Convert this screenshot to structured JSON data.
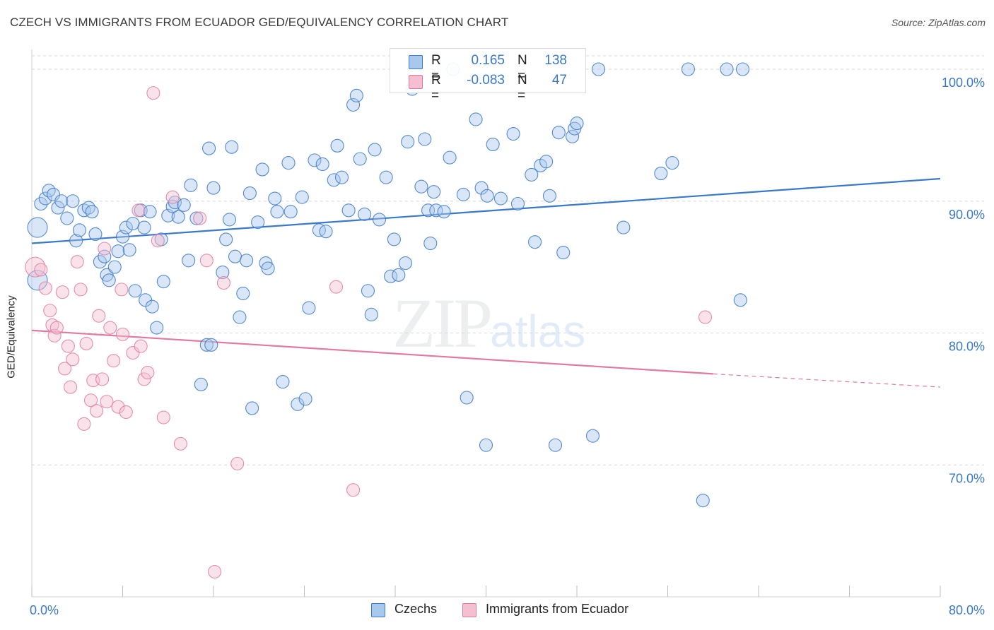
{
  "title": "CZECH VS IMMIGRANTS FROM ECUADOR GED/EQUIVALENCY CORRELATION CHART",
  "source": "Source: ZipAtlas.com",
  "watermark": {
    "zip": "ZIP",
    "atlas": "atlas"
  },
  "colors": {
    "blue": "#3a78c9",
    "pink": "#e07aa0",
    "blue_fill": "#a9c8ee",
    "pink_fill": "#f4bfd0",
    "grid": "#d8d8d8"
  },
  "legend": {
    "rows": [
      {
        "r_label": "R =",
        "r_value": "0.165",
        "n_label": "N =",
        "n_value": "138"
      },
      {
        "r_label": "R =",
        "r_value": "-0.083",
        "n_label": "N =",
        "n_value": "47"
      }
    ]
  },
  "bottom_legend": {
    "czechs": "Czechs",
    "ecuador": "Immigrants from Ecuador"
  },
  "chart_data": {
    "type": "scatter",
    "xlabel": "",
    "ylabel": "GED/Equivalency",
    "xlim": [
      0,
      80
    ],
    "ylim": [
      60,
      101.5
    ],
    "x_tick_labels": [
      {
        "value": 0,
        "label": "0.0%"
      },
      {
        "value": 80,
        "label": "80.0%"
      }
    ],
    "y_tick_labels": [
      {
        "value": 100,
        "label": "100.0%"
      },
      {
        "value": 90,
        "label": "90.0%"
      },
      {
        "value": 80,
        "label": "80.0%"
      },
      {
        "value": 70,
        "label": "70.0%"
      }
    ],
    "grid": "horizontal dashed",
    "legend_position": "top-center",
    "series": [
      {
        "name": "Czechs",
        "color": "#3a78c9",
        "trend": {
          "x0": 0,
          "y0": 86.8,
          "x1": 80,
          "y1": 91.7
        },
        "points": [
          [
            0.5,
            84.0
          ],
          [
            0.5,
            88.0
          ],
          [
            0.8,
            89.8
          ],
          [
            1.2,
            90.2
          ],
          [
            1.5,
            90.8
          ],
          [
            1.9,
            90.5
          ],
          [
            2.3,
            89.5
          ],
          [
            2.6,
            90.0
          ],
          [
            3.1,
            88.7
          ],
          [
            3.6,
            90.0
          ],
          [
            3.9,
            87.0
          ],
          [
            4.2,
            87.8
          ],
          [
            4.6,
            89.3
          ],
          [
            5.0,
            89.5
          ],
          [
            5.3,
            89.2
          ],
          [
            5.6,
            87.5
          ],
          [
            6.0,
            85.4
          ],
          [
            6.4,
            85.8
          ],
          [
            6.6,
            84.4
          ],
          [
            6.8,
            84.0
          ],
          [
            7.3,
            85.0
          ],
          [
            7.6,
            86.2
          ],
          [
            8.0,
            87.3
          ],
          [
            8.3,
            88.0
          ],
          [
            8.6,
            86.3
          ],
          [
            8.9,
            88.3
          ],
          [
            9.1,
            83.2
          ],
          [
            9.6,
            89.3
          ],
          [
            9.9,
            88.0
          ],
          [
            10.0,
            82.5
          ],
          [
            10.4,
            89.2
          ],
          [
            10.6,
            82.0
          ],
          [
            11.0,
            80.4
          ],
          [
            11.4,
            87.1
          ],
          [
            11.6,
            83.9
          ],
          [
            12.0,
            88.9
          ],
          [
            12.4,
            89.6
          ],
          [
            12.6,
            89.9
          ],
          [
            12.9,
            88.8
          ],
          [
            13.4,
            89.7
          ],
          [
            13.8,
            85.5
          ],
          [
            14.0,
            91.2
          ],
          [
            14.5,
            88.7
          ],
          [
            14.9,
            76.1
          ],
          [
            15.4,
            79.1
          ],
          [
            15.6,
            94.0
          ],
          [
            15.8,
            79.1
          ],
          [
            16.0,
            91.0
          ],
          [
            16.8,
            84.6
          ],
          [
            17.1,
            87.1
          ],
          [
            17.4,
            88.6
          ],
          [
            17.6,
            94.1
          ],
          [
            17.9,
            85.8
          ],
          [
            18.3,
            81.2
          ],
          [
            18.6,
            83.0
          ],
          [
            18.9,
            85.5
          ],
          [
            19.2,
            90.6
          ],
          [
            19.4,
            74.3
          ],
          [
            19.9,
            88.4
          ],
          [
            20.3,
            92.4
          ],
          [
            20.6,
            85.3
          ],
          [
            20.8,
            84.9
          ],
          [
            21.4,
            90.2
          ],
          [
            21.6,
            89.2
          ],
          [
            22.1,
            76.3
          ],
          [
            22.6,
            92.9
          ],
          [
            22.8,
            89.2
          ],
          [
            23.4,
            74.6
          ],
          [
            23.8,
            90.3
          ],
          [
            24.1,
            75.0
          ],
          [
            24.4,
            81.9
          ],
          [
            24.9,
            93.1
          ],
          [
            25.3,
            87.8
          ],
          [
            25.6,
            92.8
          ],
          [
            25.9,
            87.7
          ],
          [
            26.6,
            91.6
          ],
          [
            26.9,
            94.2
          ],
          [
            27.3,
            91.8
          ],
          [
            27.9,
            89.3
          ],
          [
            28.3,
            97.3
          ],
          [
            28.6,
            98.0
          ],
          [
            28.9,
            93.2
          ],
          [
            29.3,
            89.0
          ],
          [
            29.6,
            83.2
          ],
          [
            29.9,
            81.4
          ],
          [
            30.2,
            93.9
          ],
          [
            30.6,
            88.6
          ],
          [
            31.2,
            91.8
          ],
          [
            31.6,
            84.3
          ],
          [
            31.9,
            87.1
          ],
          [
            32.3,
            84.4
          ],
          [
            32.9,
            85.3
          ],
          [
            33.1,
            94.5
          ],
          [
            33.5,
            98.5
          ],
          [
            34.3,
            91.1
          ],
          [
            34.6,
            94.7
          ],
          [
            34.9,
            89.3
          ],
          [
            35.1,
            86.8
          ],
          [
            35.4,
            90.7
          ],
          [
            35.6,
            89.3
          ],
          [
            36.3,
            89.2
          ],
          [
            36.8,
            93.3
          ],
          [
            37.1,
            100.0
          ],
          [
            38.0,
            90.5
          ],
          [
            38.3,
            75.1
          ],
          [
            39.1,
            96.2
          ],
          [
            39.6,
            91.0
          ],
          [
            40.0,
            71.5
          ],
          [
            40.1,
            90.4
          ],
          [
            40.6,
            94.3
          ],
          [
            41.3,
            90.2
          ],
          [
            42.4,
            95.1
          ],
          [
            42.8,
            89.8
          ],
          [
            44.0,
            92.0
          ],
          [
            44.3,
            86.9
          ],
          [
            44.8,
            92.7
          ],
          [
            45.3,
            93.0
          ],
          [
            45.6,
            90.4
          ],
          [
            46.1,
            71.5
          ],
          [
            46.4,
            95.2
          ],
          [
            46.8,
            86.1
          ],
          [
            47.6,
            94.9
          ],
          [
            47.8,
            95.5
          ],
          [
            48.0,
            95.9
          ],
          [
            49.4,
            72.2
          ],
          [
            49.9,
            100.0
          ],
          [
            52.1,
            88.0
          ],
          [
            55.4,
            92.1
          ],
          [
            56.4,
            92.9
          ],
          [
            57.8,
            100.0
          ],
          [
            59.1,
            67.3
          ],
          [
            61.2,
            100.0
          ],
          [
            62.4,
            82.5
          ],
          [
            62.6,
            100.0
          ]
        ]
      },
      {
        "name": "Immigrants from Ecuador",
        "color": "#e07aa0",
        "trend": {
          "x0": 0,
          "y0": 80.2,
          "x1": 60,
          "y1": 76.9,
          "dash_to": {
            "x": 80,
            "y": 75.9
          }
        },
        "points": [
          [
            0.3,
            85.0
          ],
          [
            0.8,
            84.8
          ],
          [
            1.2,
            83.4
          ],
          [
            1.6,
            81.7
          ],
          [
            1.8,
            80.6
          ],
          [
            2.0,
            79.8
          ],
          [
            2.2,
            80.4
          ],
          [
            2.7,
            83.1
          ],
          [
            2.9,
            77.3
          ],
          [
            3.2,
            79.0
          ],
          [
            3.4,
            75.9
          ],
          [
            3.6,
            78.0
          ],
          [
            4.0,
            85.4
          ],
          [
            4.3,
            83.3
          ],
          [
            4.6,
            73.1
          ],
          [
            4.8,
            79.2
          ],
          [
            5.2,
            74.9
          ],
          [
            5.4,
            76.4
          ],
          [
            5.7,
            74.1
          ],
          [
            5.9,
            81.3
          ],
          [
            6.2,
            76.5
          ],
          [
            6.4,
            86.4
          ],
          [
            6.6,
            74.8
          ],
          [
            6.9,
            80.4
          ],
          [
            7.2,
            77.9
          ],
          [
            7.6,
            74.4
          ],
          [
            7.9,
            83.3
          ],
          [
            8.0,
            79.9
          ],
          [
            8.3,
            74.0
          ],
          [
            8.9,
            78.5
          ],
          [
            9.4,
            89.3
          ],
          [
            9.6,
            79.0
          ],
          [
            9.9,
            76.5
          ],
          [
            10.2,
            77.0
          ],
          [
            10.7,
            98.2
          ],
          [
            11.1,
            87.0
          ],
          [
            11.6,
            73.6
          ],
          [
            12.4,
            90.3
          ],
          [
            13.1,
            71.6
          ],
          [
            14.8,
            88.7
          ],
          [
            15.4,
            85.5
          ],
          [
            16.1,
            61.9
          ],
          [
            16.9,
            83.8
          ],
          [
            18.1,
            70.1
          ],
          [
            26.8,
            83.5
          ],
          [
            28.3,
            68.1
          ],
          [
            59.3,
            81.2
          ]
        ]
      }
    ]
  }
}
